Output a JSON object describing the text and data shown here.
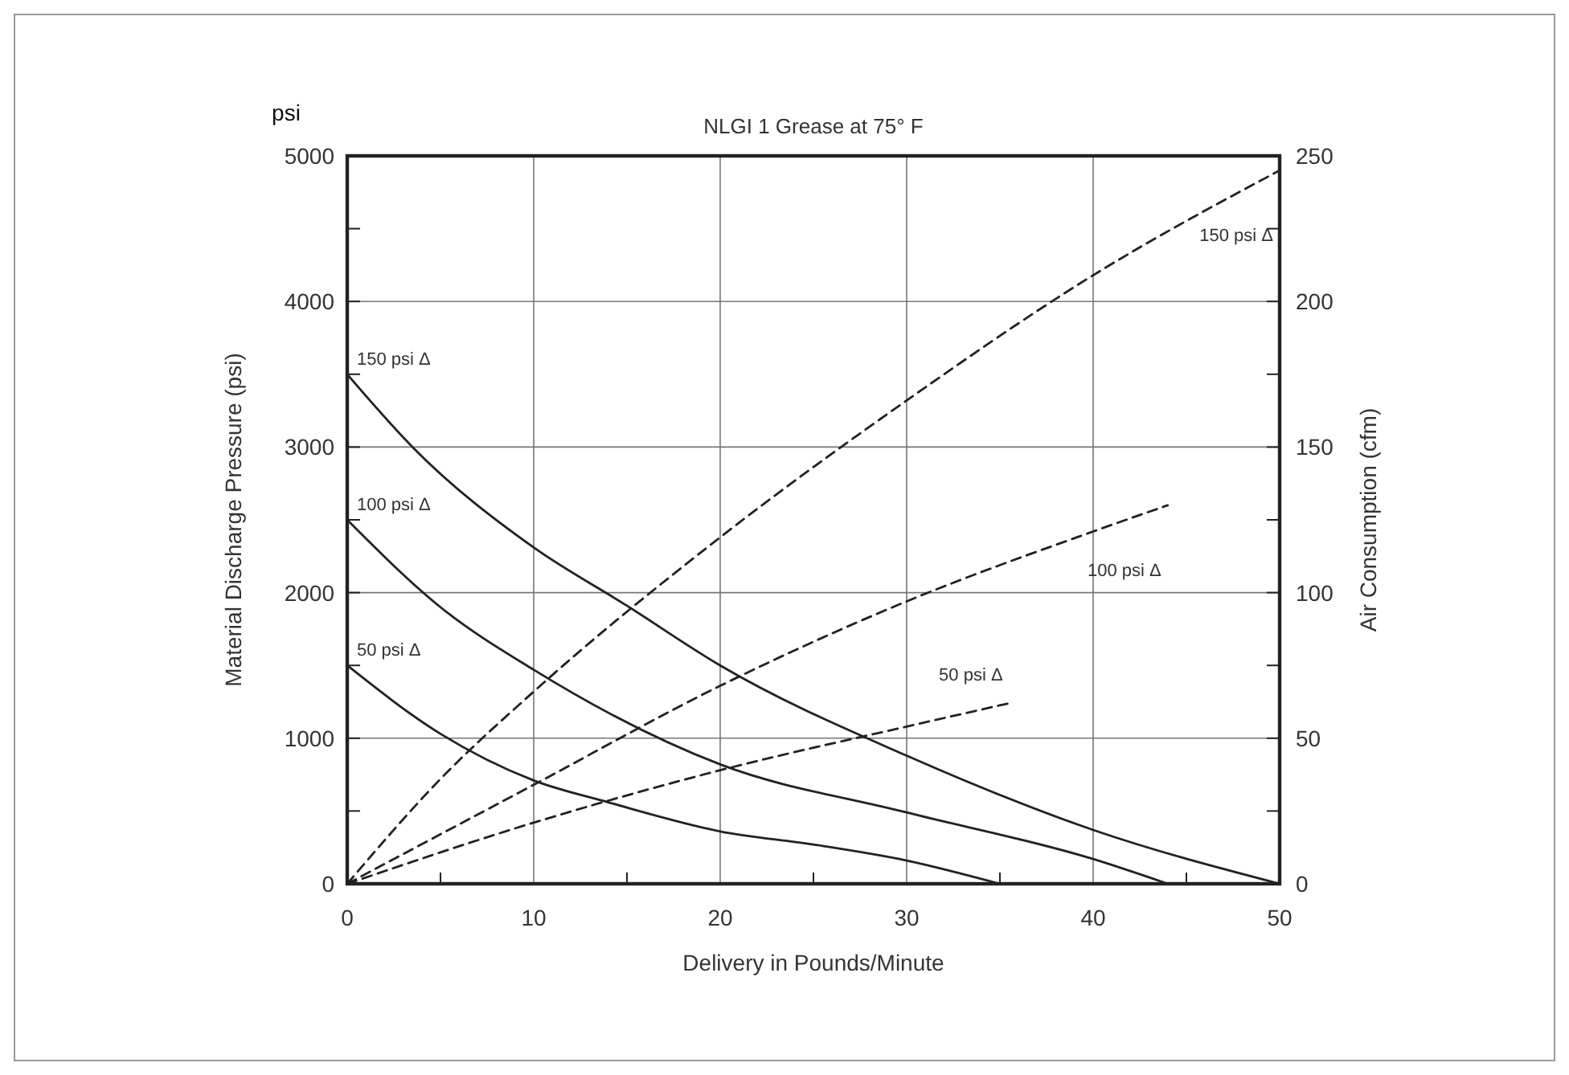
{
  "chart_data": {
    "type": "line",
    "title": "NLGI 1 Grease at 75° F",
    "xlabel": "Delivery in Pounds/Minute",
    "ylabel": "Material Discharge Pressure (psi)",
    "y2label": "Air Consumption (cfm)",
    "annotations": [
      "psi"
    ],
    "xlim": [
      0,
      50
    ],
    "xticks": [
      0,
      {
        "value": 5,
        "label": null
      },
      10,
      {
        "value": 15,
        "label": null
      },
      20,
      {
        "value": 25,
        "label": null
      },
      30,
      {
        "value": 35,
        "label": null
      },
      40,
      {
        "value": 45,
        "label": null
      },
      50
    ],
    "ylim": [
      0,
      5000
    ],
    "yticks": [
      0,
      {
        "value": 500,
        "label": null
      },
      1000,
      {
        "value": 1500,
        "label": null
      },
      2000,
      {
        "value": 2500,
        "label": null
      },
      3000,
      {
        "value": 3500,
        "label": null
      },
      4000,
      {
        "value": 4500,
        "label": null
      },
      5000
    ],
    "y2lim": [
      0,
      250
    ],
    "y2ticks": [
      0,
      {
        "value": 25,
        "label": null
      },
      50,
      {
        "value": 75,
        "label": null
      },
      100,
      {
        "value": 125,
        "label": null
      },
      150,
      {
        "value": 175,
        "label": null
      },
      200,
      {
        "value": 225,
        "label": null
      },
      250
    ],
    "grid": true,
    "series": [
      {
        "name": "150 psi Δ",
        "color": "#222222",
        "line_style": "solid",
        "x": [
          0,
          3.5,
          10,
          15,
          20,
          30,
          40,
          50
        ],
        "values": [
          3500,
          3000,
          2310,
          1910,
          1500,
          880,
          370,
          0
        ]
      },
      {
        "name": "100 psi Δ",
        "color": "#222222",
        "line_style": "solid",
        "x": [
          0,
          5,
          10,
          20,
          30,
          40,
          44
        ],
        "values": [
          2500,
          1900,
          1470,
          820,
          490,
          170,
          0
        ]
      },
      {
        "name": "50 psi Δ",
        "color": "#222222",
        "line_style": "solid",
        "x": [
          0,
          5,
          10,
          14,
          20,
          25,
          30,
          35
        ],
        "values": [
          1500,
          1030,
          710,
          560,
          360,
          270,
          160,
          0
        ]
      },
      {
        "name": "150 psi Δ",
        "color": "#222222",
        "line_style": "dashed",
        "axis": "y2",
        "x": [
          0,
          5,
          10,
          20,
          30,
          40,
          50
        ],
        "values": [
          0,
          36,
          66,
          119,
          166,
          209,
          245
        ]
      },
      {
        "name": "100 psi Δ",
        "color": "#222222",
        "line_style": "dashed",
        "axis": "y2",
        "x": [
          0,
          10,
          20,
          30,
          40,
          44
        ],
        "values": [
          0,
          34,
          68,
          97,
          121,
          130
        ]
      },
      {
        "name": "50 psi Δ",
        "color": "#222222",
        "line_style": "dashed",
        "axis": "y2",
        "x": [
          0,
          10,
          20,
          30,
          35.5
        ],
        "values": [
          0,
          21,
          39,
          54,
          62
        ]
      }
    ]
  }
}
